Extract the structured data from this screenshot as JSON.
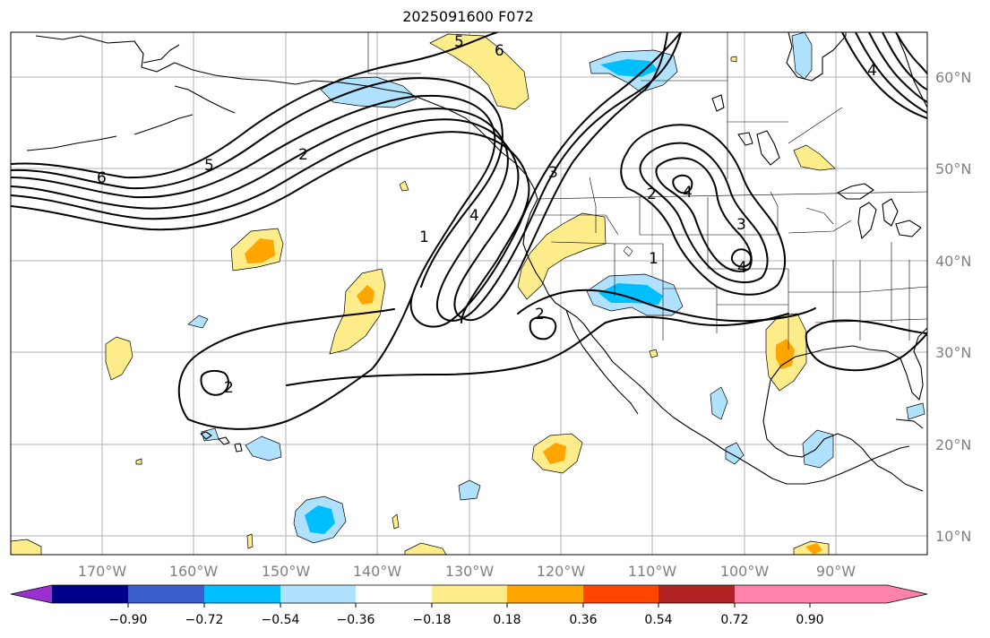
{
  "title": "2025091600 F072",
  "lon_labels": [
    "170°W",
    "160°W",
    "150°W",
    "140°W",
    "130°W",
    "120°W",
    "110°W",
    "100°W",
    "90°W"
  ],
  "lat_labels": [
    "60°N",
    "50°N",
    "40°N",
    "30°N",
    "20°N",
    "10°N"
  ],
  "colorbar": {
    "ticks": [
      "−0.90",
      "−0.72",
      "−0.54",
      "−0.36",
      "−0.18",
      "0.18",
      "0.36",
      "0.54",
      "0.72",
      "0.90"
    ],
    "colors": [
      "#9b30d0",
      "#00008b",
      "#3a5fcd",
      "#00bfff",
      "#b0e2ff",
      "#ffffff",
      "#ffec8b",
      "#ffa500",
      "#ff4500",
      "#b22222",
      "#ff82ab"
    ]
  },
  "contour_labels": [
    "6",
    "5",
    "2",
    "6",
    "5",
    "1",
    "4",
    "3",
    "2",
    "4",
    "3",
    "4",
    "1",
    "2",
    "2",
    "4"
  ]
}
